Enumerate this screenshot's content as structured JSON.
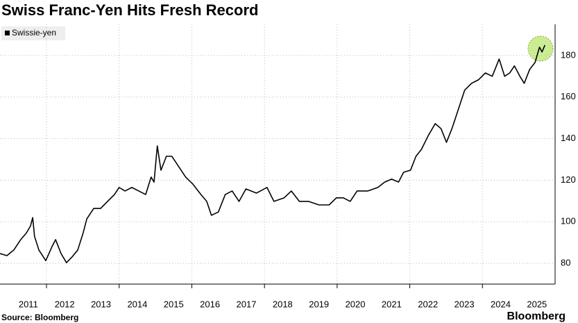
{
  "chart_data": {
    "type": "line",
    "title": "Swiss Franc-Yen Hits Fresh Record",
    "source": "Source: Bloomberg",
    "logo": "Bloomberg",
    "series": [
      {
        "name": "Swissie-yen",
        "color": "#000000",
        "x": [
          2010.72,
          2010.91,
          2011.1,
          2011.29,
          2011.45,
          2011.56,
          2011.62,
          2011.67,
          2011.79,
          2011.98,
          2012.15,
          2012.25,
          2012.4,
          2012.55,
          2012.7,
          2012.86,
          2013.01,
          2013.11,
          2013.3,
          2013.49,
          2013.68,
          2013.87,
          2014.0,
          2014.16,
          2014.35,
          2014.54,
          2014.73,
          2014.88,
          2014.96,
          2015.05,
          2015.15,
          2015.3,
          2015.45,
          2015.64,
          2015.83,
          2016.03,
          2016.25,
          2016.41,
          2016.54,
          2016.73,
          2016.92,
          2017.11,
          2017.3,
          2017.49,
          2017.78,
          2018.07,
          2018.26,
          2018.54,
          2018.74,
          2018.96,
          2019.21,
          2019.5,
          2019.78,
          2019.98,
          2020.17,
          2020.36,
          2020.55,
          2020.84,
          2021.12,
          2021.31,
          2021.5,
          2021.69,
          2021.83,
          2022.02,
          2022.17,
          2022.32,
          2022.51,
          2022.7,
          2022.86,
          2023.01,
          2023.16,
          2023.32,
          2023.51,
          2023.7,
          2023.89,
          2024.08,
          2024.27,
          2024.46,
          2024.61,
          2024.75,
          2024.88,
          2025.03,
          2025.15,
          2025.3,
          2025.45,
          2025.57,
          2025.64,
          2025.72
        ],
        "values": [
          84.7,
          83.7,
          86.4,
          91.4,
          94.7,
          98,
          102,
          93,
          86.4,
          81.3,
          88,
          91.4,
          84.7,
          80.3,
          83,
          86.4,
          94.7,
          101.4,
          106.4,
          106.4,
          109.8,
          113.1,
          116.5,
          114.8,
          116.5,
          114.8,
          113.1,
          121.5,
          119.1,
          136.5,
          124.8,
          131.5,
          131.5,
          126.5,
          121.5,
          118.1,
          113.1,
          109.8,
          103.1,
          104.7,
          113.1,
          114.8,
          109.8,
          115.8,
          113.8,
          116.5,
          109.8,
          111.5,
          114.8,
          109.8,
          109.8,
          108.1,
          108.1,
          111.5,
          111.5,
          109.8,
          114.8,
          114.8,
          116.5,
          119.1,
          120.5,
          119.1,
          123.8,
          124.8,
          131.5,
          134.8,
          141.5,
          147.2,
          144.8,
          138.2,
          144.8,
          153.2,
          163.3,
          166.6,
          168.3,
          171.6,
          170,
          178.3,
          170,
          171.6,
          175,
          170,
          166.6,
          173.3,
          176.7,
          184,
          181.7,
          185
        ]
      }
    ],
    "xlim": [
      2010.72,
      2026
    ],
    "xticks": [
      {
        "value": 2011.5,
        "label": "2011"
      },
      {
        "value": 2012.5,
        "label": "2012"
      },
      {
        "value": 2013.5,
        "label": "2013"
      },
      {
        "value": 2014.5,
        "label": "2014"
      },
      {
        "value": 2015.5,
        "label": "2015"
      },
      {
        "value": 2016.5,
        "label": "2016"
      },
      {
        "value": 2017.5,
        "label": "2017"
      },
      {
        "value": 2018.5,
        "label": "2018"
      },
      {
        "value": 2019.5,
        "label": "2019"
      },
      {
        "value": 2020.5,
        "label": "2020"
      },
      {
        "value": 2021.5,
        "label": "2021"
      },
      {
        "value": 2022.5,
        "label": "2022"
      },
      {
        "value": 2023.5,
        "label": "2023"
      },
      {
        "value": 2024.5,
        "label": "2024"
      },
      {
        "value": 2025.5,
        "label": "2025"
      }
    ],
    "xgrid": [
      2012,
      2014,
      2016,
      2018,
      2020,
      2022,
      2024
    ],
    "ylim": [
      70,
      195
    ],
    "yticks": [
      80,
      100,
      120,
      140,
      160,
      180
    ],
    "grid": true
  }
}
